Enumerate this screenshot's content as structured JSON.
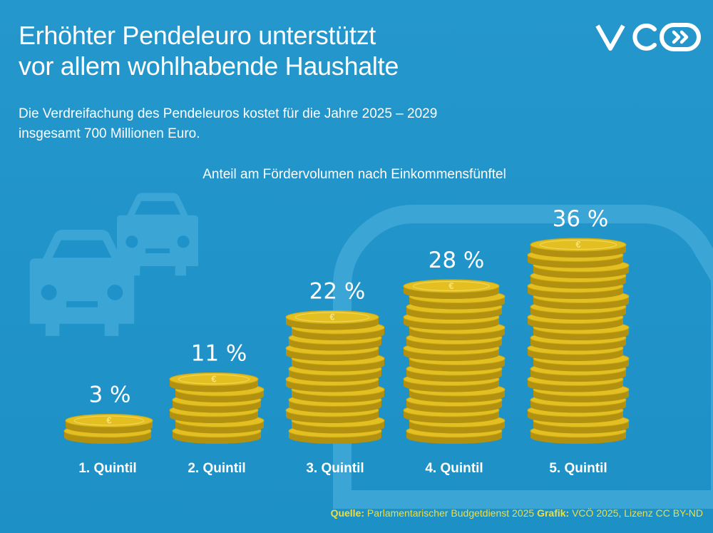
{
  "header": {
    "title_line1": "Erhöhter Pendeleuro unterstützt",
    "title_line2": "vor allem wohlhabende Haushalte",
    "subtitle_line1": "Die Verdreifachung des Pendeleuros kostet für die Jahre 2025 – 2029",
    "subtitle_line2": "insgesamt 700 Millionen Euro.",
    "logo_icon": "vco-logo-icon"
  },
  "chart_data": {
    "type": "bar",
    "title": "Anteil am Fördervolumen nach Einkommensfünftel",
    "categories": [
      "1. Quintil",
      "2. Quintil",
      "3. Quintil",
      "4. Quintil",
      "5. Quintil"
    ],
    "values": [
      3,
      11,
      22,
      28,
      36
    ],
    "value_labels": [
      "3 %",
      "11 %",
      "22 %",
      "28 %",
      "36 %"
    ],
    "unit": "%",
    "ylim": [
      0,
      36
    ],
    "mark_style": "coin-stacks",
    "grid": false
  },
  "footer": {
    "source_label": "Quelle:",
    "source_text": "Parlamentarischer Budgetdienst 2025",
    "graphic_label": "Grafik:",
    "graphic_text": "VCÖ 2025, Lizenz CC BY-ND"
  },
  "colors": {
    "background": "#1f93c9",
    "decor": "#3ba6d6",
    "text": "#ffffff",
    "coin": "#e3bf21",
    "coin_dark": "#b1910f",
    "footer": "#f2dd3c"
  }
}
